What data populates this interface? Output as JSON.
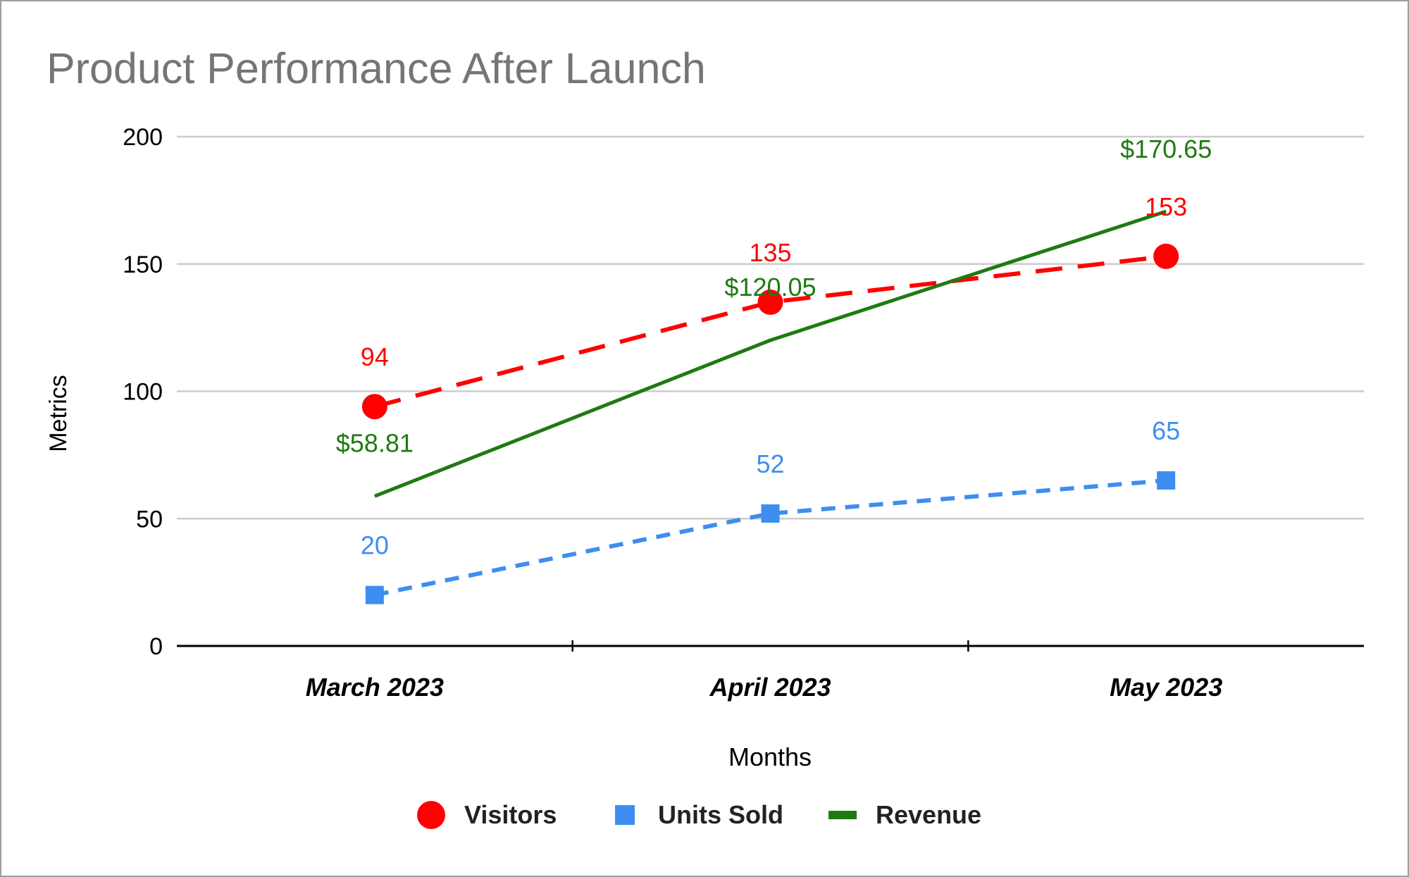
{
  "chart_data": {
    "type": "line",
    "title": "Product Performance After Launch",
    "xlabel": "Months",
    "ylabel": "Metrics",
    "categories": [
      "March 2023",
      "April 2023",
      "May 2023"
    ],
    "ylim": [
      0,
      200
    ],
    "yticks": [
      0,
      50,
      100,
      150,
      200
    ],
    "grid": true,
    "legend_position": "bottom",
    "series": [
      {
        "name": "Visitors",
        "values": [
          94,
          135,
          153
        ],
        "labels": [
          "94",
          "135",
          "153"
        ],
        "color": "#ff0000",
        "marker": "circle",
        "dash": "long"
      },
      {
        "name": "Units Sold",
        "values": [
          20,
          52,
          65
        ],
        "labels": [
          "20",
          "52",
          "65"
        ],
        "color": "#3d8ef0",
        "marker": "square",
        "dash": "short"
      },
      {
        "name": "Revenue",
        "values": [
          58.81,
          120.05,
          170.65
        ],
        "labels": [
          "$58.81",
          "$120.05",
          "$170.65"
        ],
        "color": "#1f7a12",
        "marker": "none",
        "dash": "solid"
      }
    ]
  }
}
